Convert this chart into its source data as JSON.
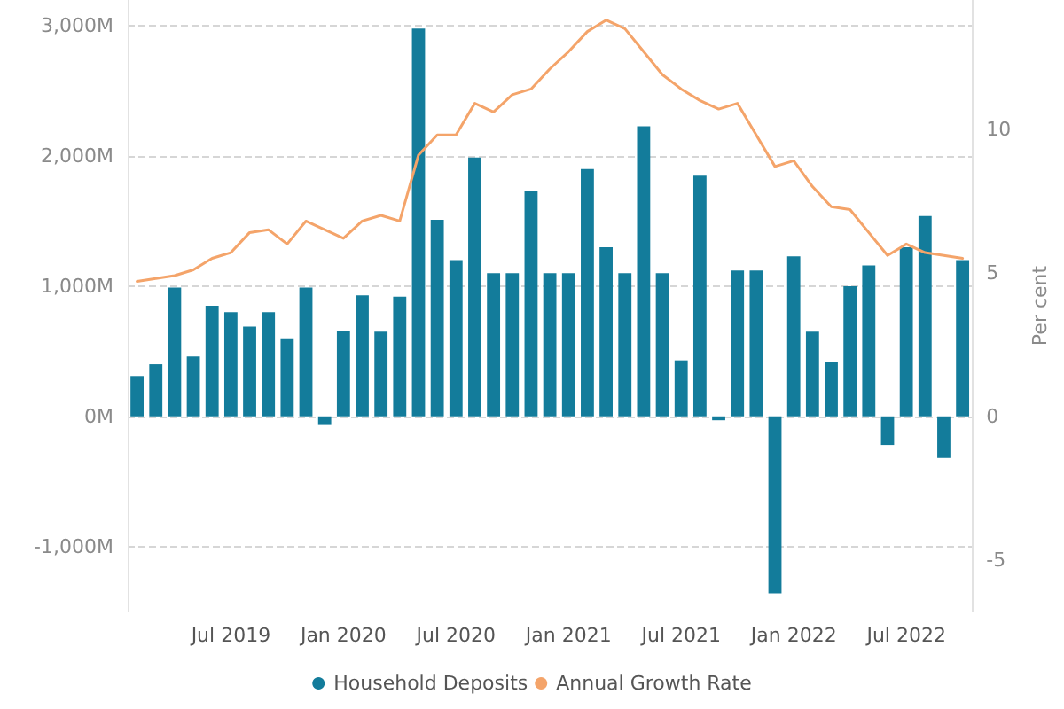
{
  "chart_data": {
    "type": "bar",
    "categories": [
      null,
      null,
      null,
      null,
      null,
      "Jul 2019",
      null,
      null,
      null,
      null,
      null,
      "Jan 2020",
      null,
      null,
      null,
      null,
      null,
      "Jul 2020",
      null,
      null,
      null,
      null,
      null,
      "Jan 2021",
      null,
      null,
      null,
      null,
      null,
      "Jul 2021",
      null,
      null,
      null,
      null,
      null,
      "Jan 2022",
      null,
      null,
      null,
      null,
      null,
      "Jul 2022",
      null,
      null,
      null
    ],
    "series": [
      {
        "name": "Household Deposits",
        "color": "#137c9b",
        "values": [
          310,
          400,
          990,
          460,
          850,
          800,
          690,
          800,
          600,
          990,
          -60,
          660,
          930,
          650,
          920,
          2980,
          1510,
          1200,
          1990,
          1100,
          1100,
          1730,
          1100,
          1100,
          1900,
          1300,
          1100,
          2230,
          1100,
          430,
          1850,
          -30,
          1120,
          1120,
          -1360,
          1230,
          650,
          420,
          1000,
          1160,
          -220,
          1300,
          1540,
          -320,
          1200
        ]
      },
      {
        "name": "Annual Growth Rate",
        "type": "line",
        "axis": "y2",
        "color": "#f4a46a",
        "values": [
          4.7,
          4.8,
          4.9,
          5.1,
          5.5,
          5.7,
          6.4,
          6.5,
          6.0,
          6.8,
          6.5,
          6.2,
          6.8,
          7.0,
          6.8,
          9.1,
          9.8,
          9.8,
          10.9,
          10.6,
          11.2,
          11.4,
          12.1,
          12.7,
          13.4,
          13.8,
          13.5,
          12.7,
          11.9,
          11.4,
          11.0,
          10.7,
          10.9,
          9.8,
          8.7,
          8.9,
          8.0,
          7.3,
          7.2,
          6.4,
          5.6,
          6.0,
          5.7,
          5.6,
          5.5
        ]
      }
    ],
    "ylim": [
      -1500,
      3200
    ],
    "yticks": [
      {
        "value": -1000,
        "label": "-1,000M"
      },
      {
        "value": 0,
        "label": "0M"
      },
      {
        "value": 1000,
        "label": "1,000M"
      },
      {
        "value": 2000,
        "label": "2,000M"
      },
      {
        "value": 3000,
        "label": "3,000M"
      }
    ],
    "y2label": "Per cent",
    "y2lim": [
      -6.8,
      14.5
    ],
    "y2ticks": [
      -5,
      0,
      5,
      10
    ],
    "grid": "y",
    "legend": "bottom",
    "marker": "none"
  }
}
